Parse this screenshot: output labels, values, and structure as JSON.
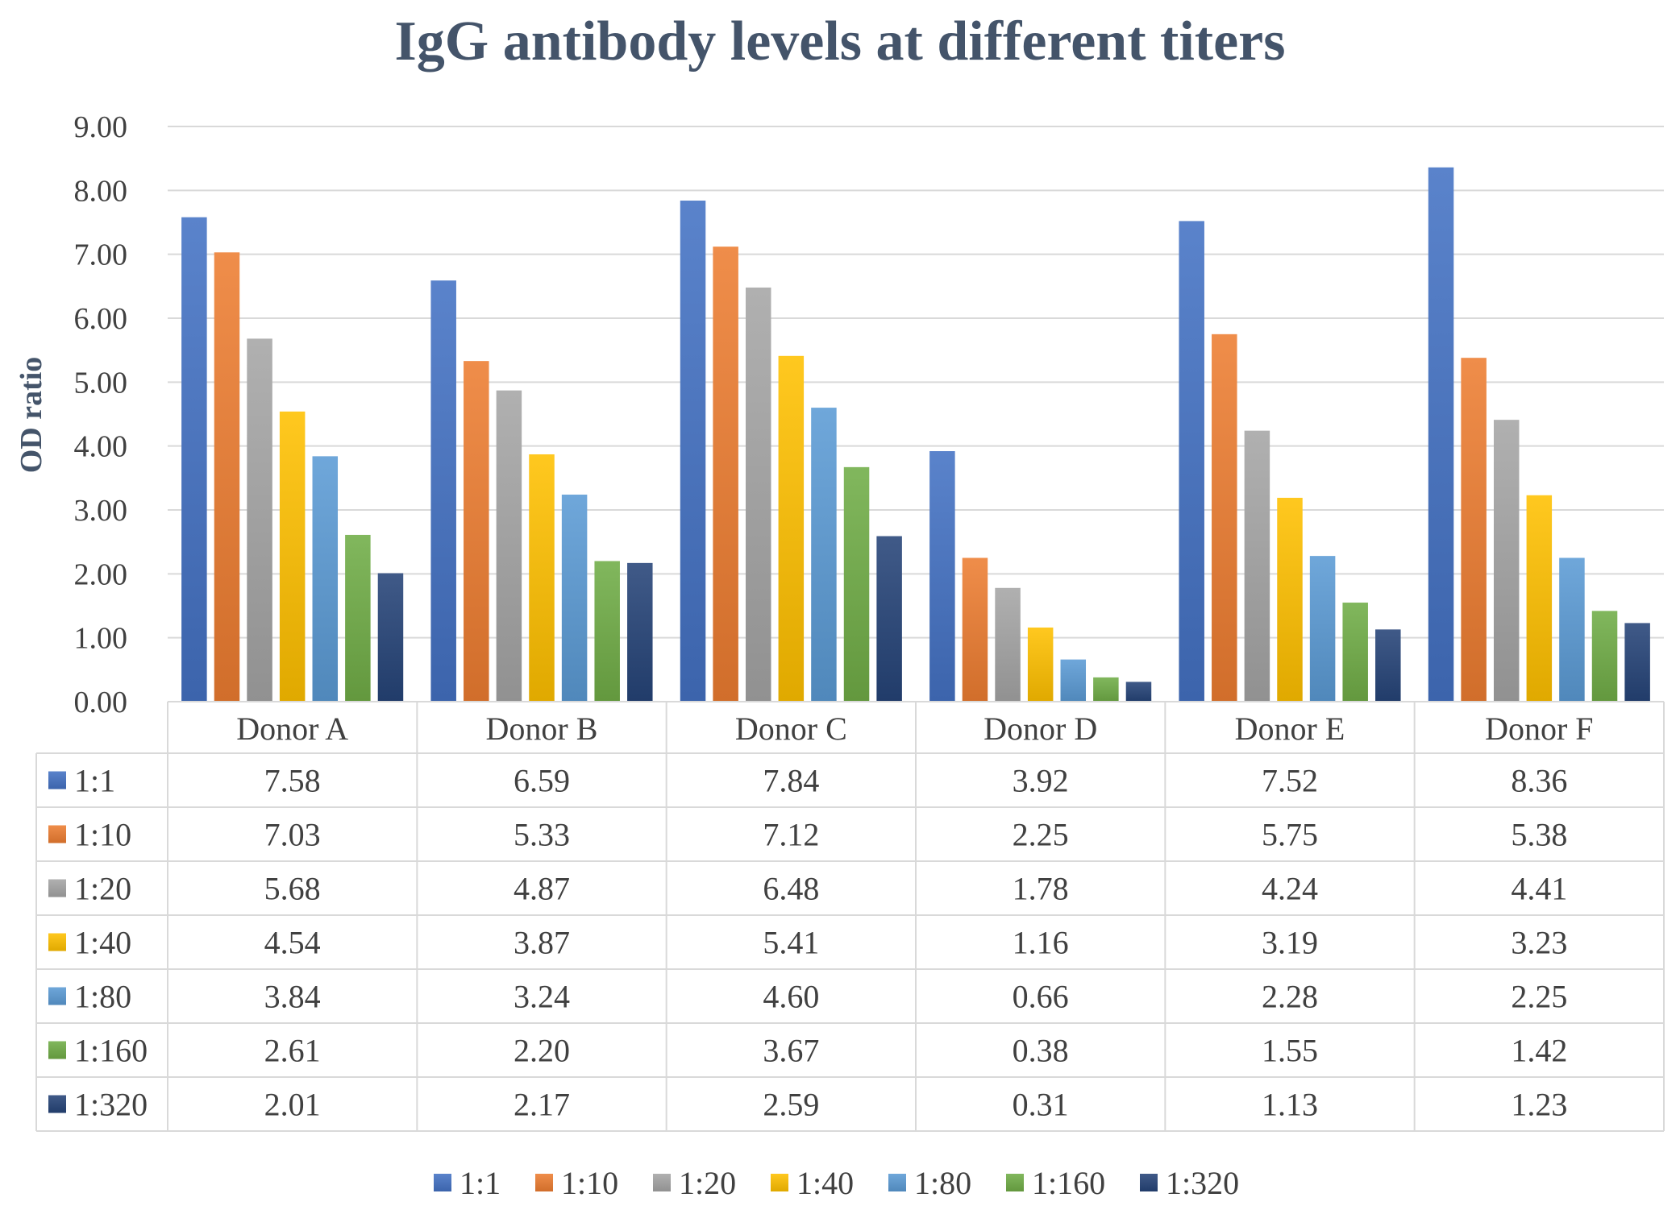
{
  "chart_data": {
    "type": "bar",
    "title": "IgG antibody levels at different titers",
    "ylabel": "OD ratio",
    "xlabel": "",
    "ylim": [
      0,
      9
    ],
    "yticks": [
      "0.00",
      "1.00",
      "2.00",
      "3.00",
      "4.00",
      "5.00",
      "6.00",
      "7.00",
      "8.00",
      "9.00"
    ],
    "grid": true,
    "legend": "bottom",
    "data_table": true,
    "categories": [
      "Donor A",
      "Donor B",
      "Donor C",
      "Donor D",
      "Donor E",
      "Donor F"
    ],
    "series": [
      {
        "name": "1:1",
        "color": "#4472c4",
        "values": [
          7.58,
          6.59,
          7.84,
          3.92,
          7.52,
          8.36
        ],
        "labels": [
          "7.58",
          "6.59",
          "7.84",
          "3.92",
          "7.52",
          "8.36"
        ]
      },
      {
        "name": "1:10",
        "color": "#ed7d31",
        "values": [
          7.03,
          5.33,
          7.12,
          2.25,
          5.75,
          5.38
        ],
        "labels": [
          "7.03",
          "5.33",
          "7.12",
          "2.25",
          "5.75",
          "5.38"
        ]
      },
      {
        "name": "1:20",
        "color": "#a5a5a5",
        "values": [
          5.68,
          4.87,
          6.48,
          1.78,
          4.24,
          4.41
        ],
        "labels": [
          "5.68",
          "4.87",
          "6.48",
          "1.78",
          "4.24",
          "4.41"
        ]
      },
      {
        "name": "1:40",
        "color": "#ffc000",
        "values": [
          4.54,
          3.87,
          5.41,
          1.16,
          3.19,
          3.23
        ],
        "labels": [
          "4.54",
          "3.87",
          "5.41",
          "1.16",
          "3.19",
          "3.23"
        ]
      },
      {
        "name": "1:80",
        "color": "#5b9bd5",
        "values": [
          3.84,
          3.24,
          4.6,
          0.66,
          2.28,
          2.25
        ],
        "labels": [
          "3.84",
          "3.24",
          "4.60",
          "0.66",
          "2.28",
          "2.25"
        ]
      },
      {
        "name": "1:160",
        "color": "#70ad47",
        "values": [
          2.61,
          2.2,
          3.67,
          0.38,
          1.55,
          1.42
        ],
        "labels": [
          "2.61",
          "2.20",
          "3.67",
          "0.38",
          "1.55",
          "1.42"
        ]
      },
      {
        "name": "1:320",
        "color": "#264478",
        "values": [
          2.01,
          2.17,
          2.59,
          0.31,
          1.13,
          1.23
        ],
        "labels": [
          "2.01",
          "2.17",
          "2.59",
          "0.31",
          "1.13",
          "1.23"
        ]
      }
    ]
  }
}
